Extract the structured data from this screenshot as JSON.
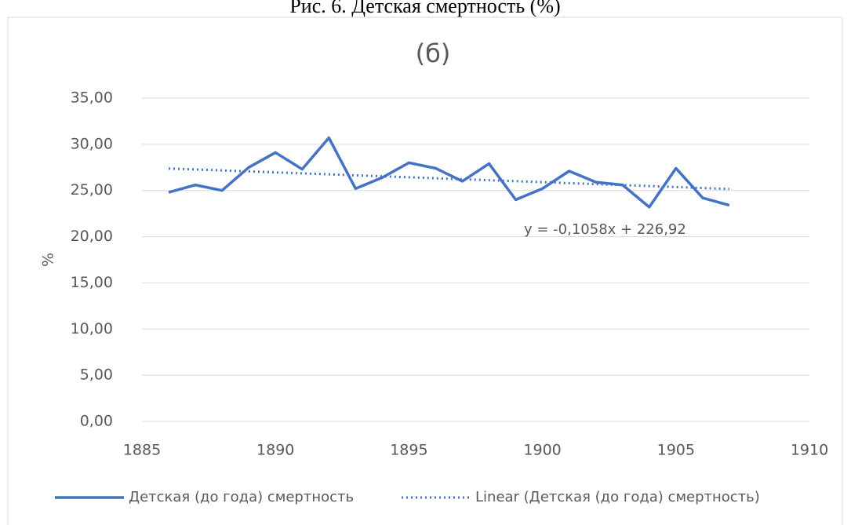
{
  "chart_data": {
    "type": "line",
    "caption": "Рис. 6. Детская смертность (%)",
    "title": "(б)",
    "y_label": "%",
    "x": [
      1886,
      1887,
      1888,
      1889,
      1890,
      1891,
      1892,
      1893,
      1894,
      1895,
      1896,
      1897,
      1898,
      1899,
      1900,
      1901,
      1902,
      1903,
      1904,
      1905,
      1906,
      1907
    ],
    "series": [
      {
        "name": "Детская (до года) смертность",
        "color": "#4472c4",
        "values": [
          24.8,
          25.6,
          25.0,
          27.5,
          29.1,
          27.3,
          30.7,
          25.2,
          26.4,
          28.0,
          27.4,
          26.0,
          27.9,
          24.0,
          25.2,
          27.1,
          25.9,
          25.6,
          23.2,
          27.4,
          24.2,
          23.4
        ]
      }
    ],
    "trend": {
      "name": "Linear (Детская (до года) смертность)",
      "color": "#4472c4",
      "style": "dotted",
      "x": [
        1886,
        1907
      ],
      "values": [
        27.38,
        25.16
      ],
      "equation": "y = -0,1058x + 226,92"
    },
    "xlim": [
      1885,
      1910
    ],
    "xticks": [
      1885,
      1890,
      1895,
      1900,
      1905,
      1910
    ],
    "ylim": [
      0,
      35
    ],
    "yticks": [
      {
        "value": 0,
        "label": "0,00"
      },
      {
        "value": 5,
        "label": "5,00"
      },
      {
        "value": 10,
        "label": "10,00"
      },
      {
        "value": 15,
        "label": "15,00"
      },
      {
        "value": 20,
        "label": "20,00"
      },
      {
        "value": 25,
        "label": "25,00"
      },
      {
        "value": 30,
        "label": "30,00"
      },
      {
        "value": 35,
        "label": "35,00"
      }
    ],
    "grid": true,
    "legend": "bottom"
  }
}
